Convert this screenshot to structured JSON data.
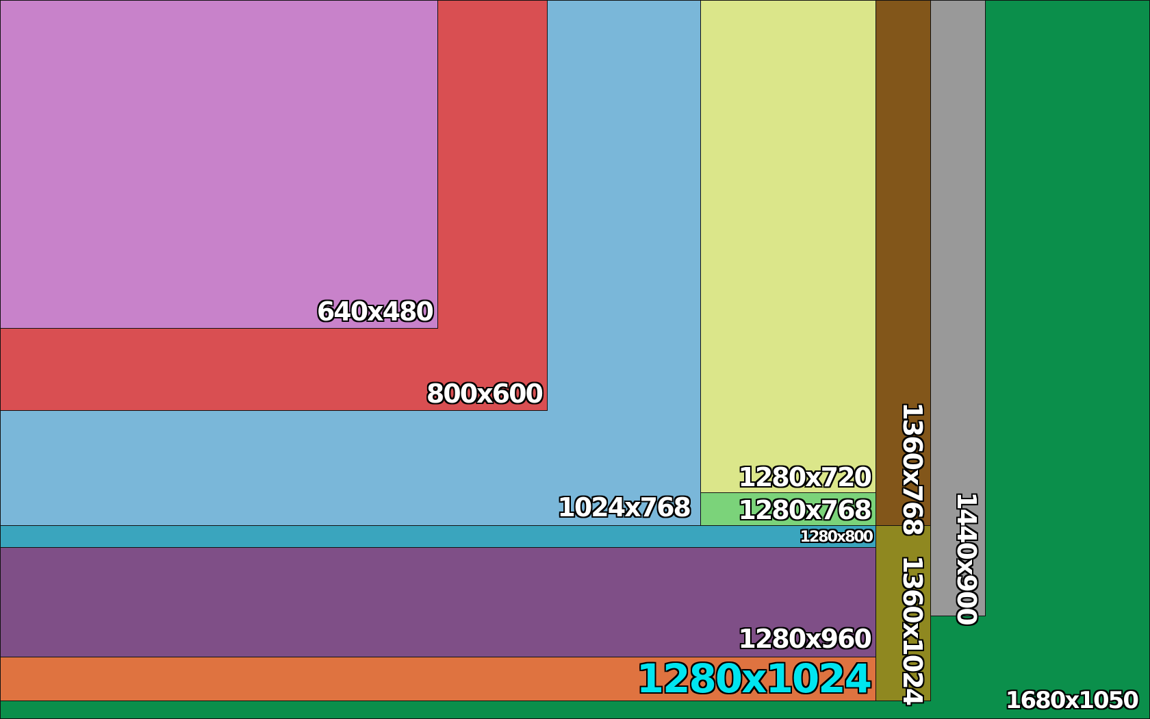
{
  "resolutions": [
    {
      "id": "r1680x1050",
      "label": "1680x1050",
      "width": 1680,
      "height": 1050,
      "color": "#0b8f4b"
    },
    {
      "id": "r1440x900",
      "label": "1440x900",
      "width": 1440,
      "height": 900,
      "color": "#999999"
    },
    {
      "id": "r1360x1024",
      "label": "1360x1024",
      "width": 1360,
      "height": 1024,
      "color": "#8f8820"
    },
    {
      "id": "r1280x1024",
      "label": "1280x1024",
      "width": 1280,
      "height": 1024,
      "color": "#df7340"
    },
    {
      "id": "r1280x960",
      "label": "1280x960",
      "width": 1280,
      "height": 960,
      "color": "#7f4f87"
    },
    {
      "id": "r1280x800",
      "label": "1280x800",
      "width": 1280,
      "height": 800,
      "color": "#3aa5be"
    },
    {
      "id": "r1360x768",
      "label": "1360x768",
      "width": 1360,
      "height": 768,
      "color": "#82561a"
    },
    {
      "id": "r1280x768",
      "label": "1280x768",
      "width": 1280,
      "height": 768,
      "color": "#7bd37a"
    },
    {
      "id": "r1280x720",
      "label": "1280x720",
      "width": 1280,
      "height": 720,
      "color": "#dbe68a"
    },
    {
      "id": "r1024x768",
      "label": "1024x768",
      "width": 1024,
      "height": 768,
      "color": "#7ab7d9"
    },
    {
      "id": "r800x600",
      "label": "800x600",
      "width": 800,
      "height": 600,
      "color": "#d94f52"
    },
    {
      "id": "r640x480",
      "label": "640x480",
      "width": 640,
      "height": 480,
      "color": "#c882ca"
    }
  ]
}
